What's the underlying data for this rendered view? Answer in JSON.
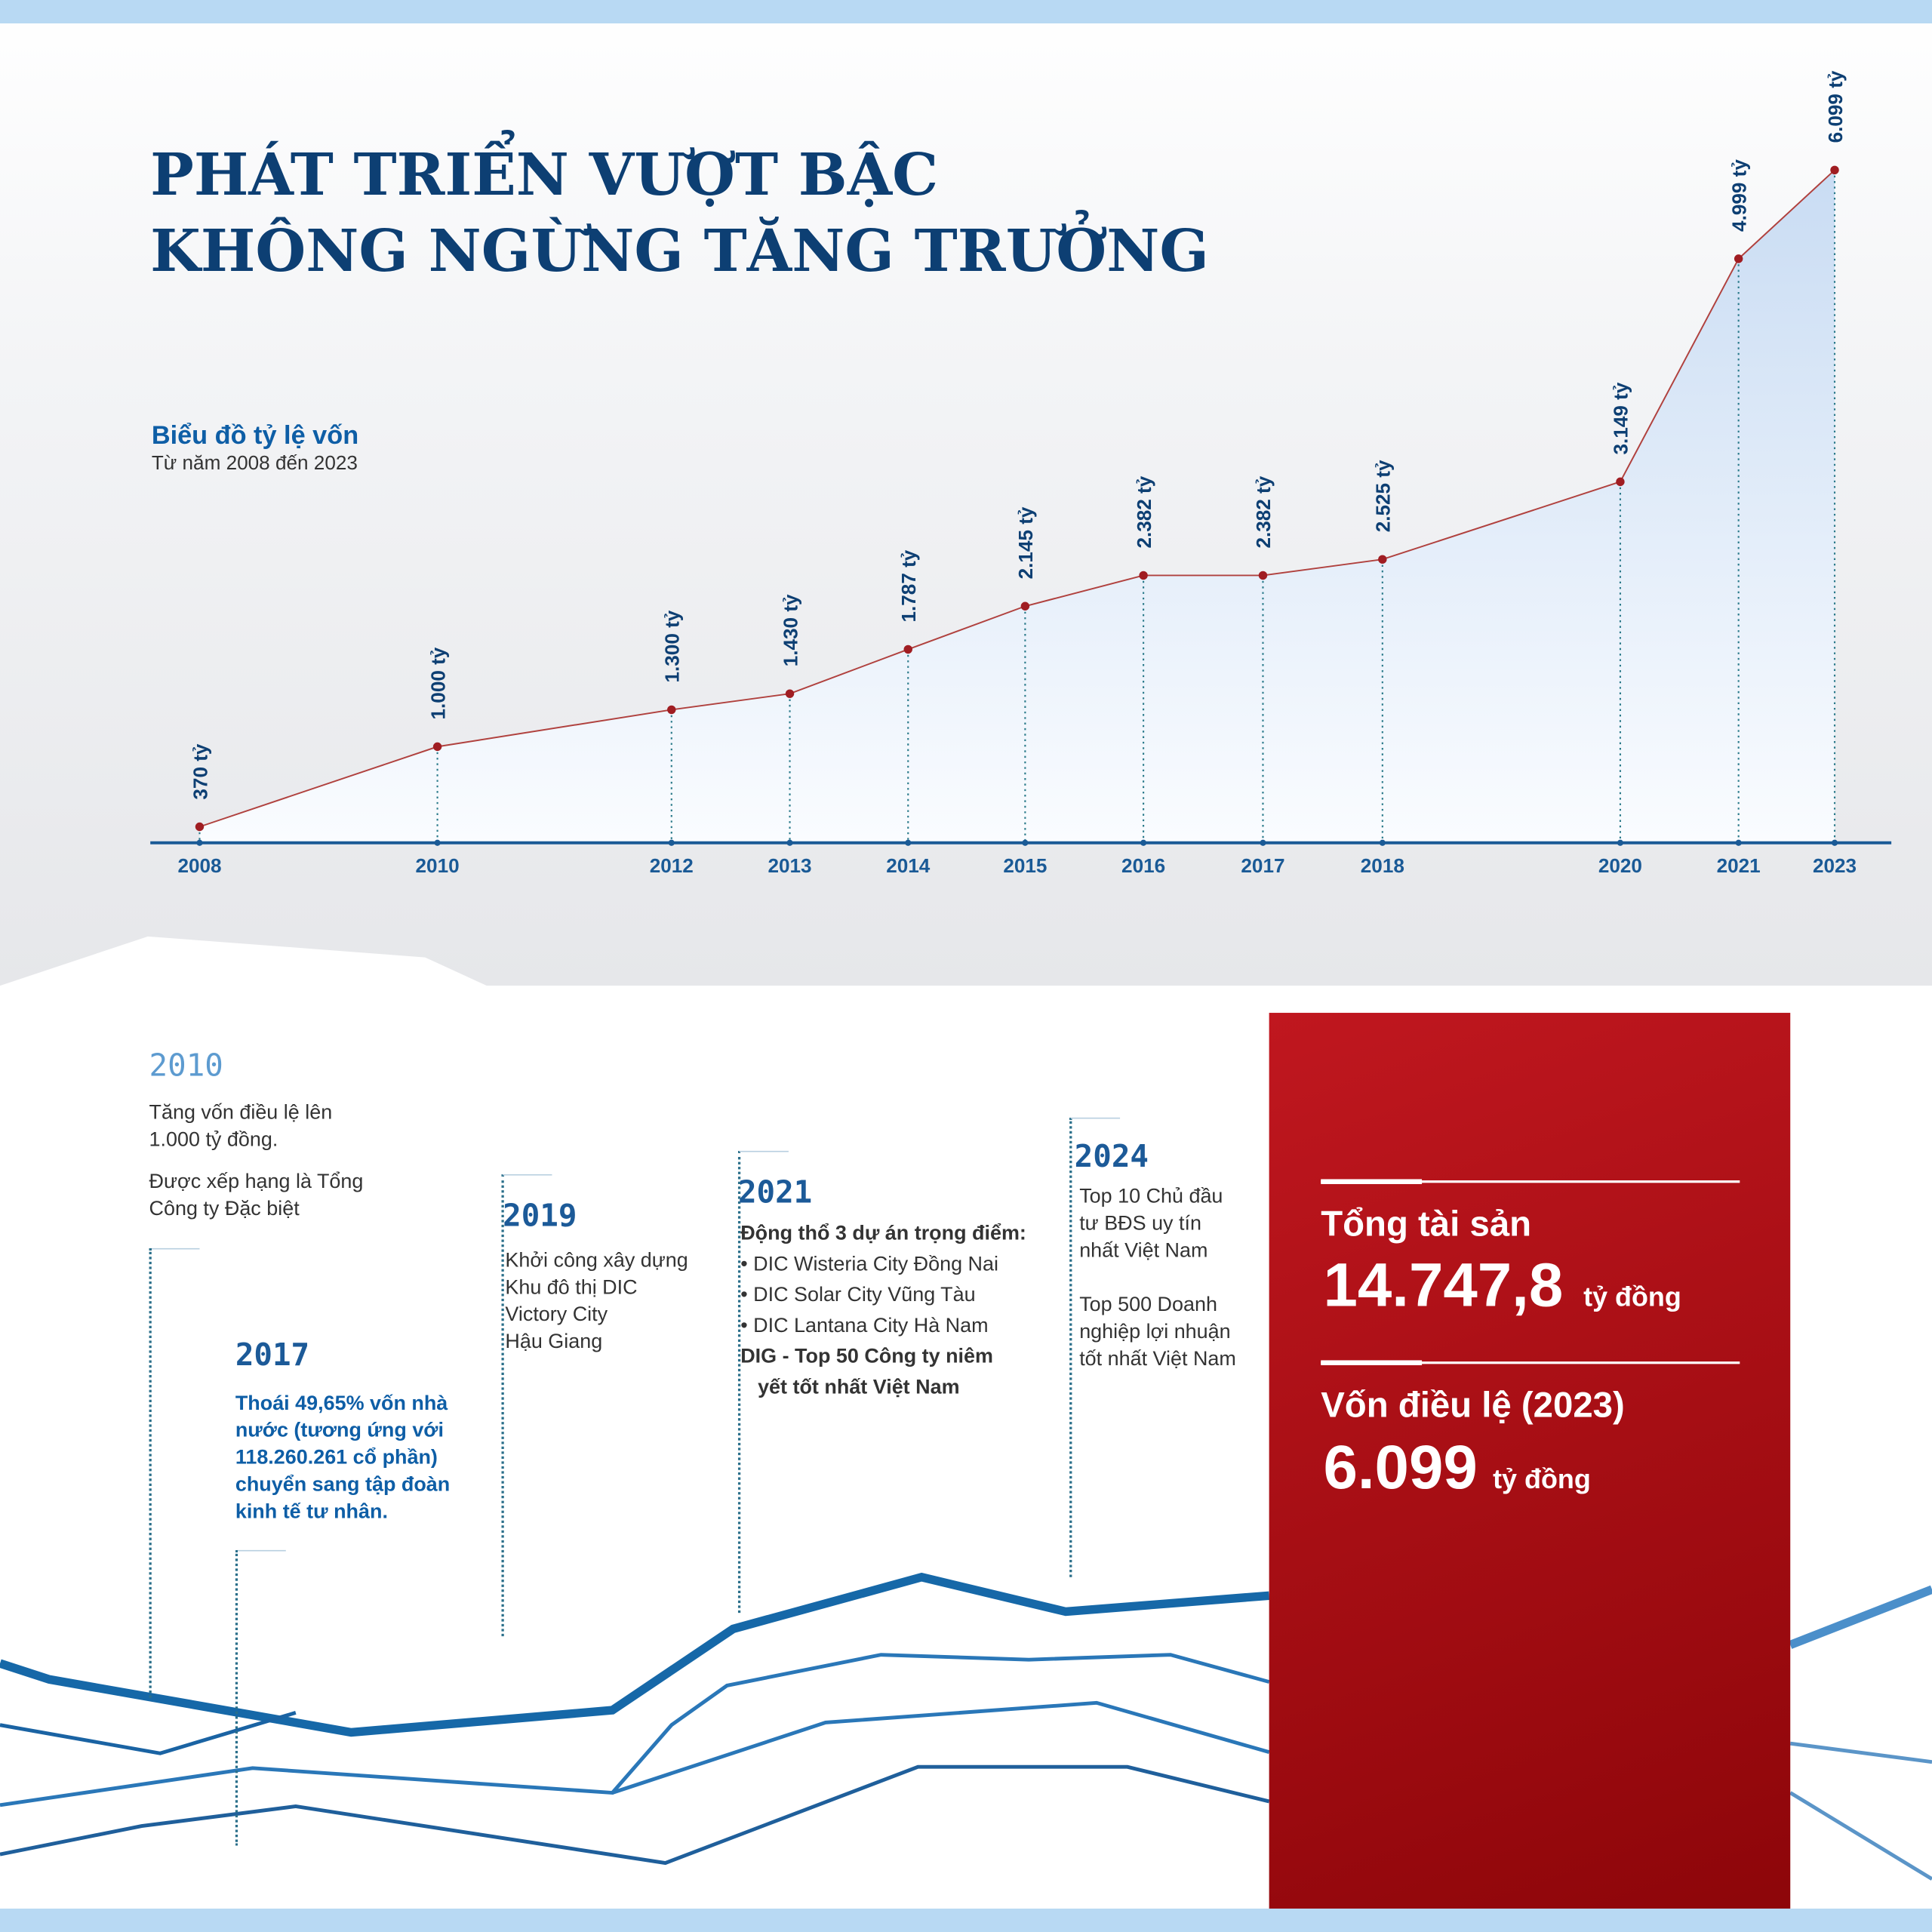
{
  "title": {
    "line1": "PHÁT TRIỂN VƯỢT BẬC",
    "line2": "KHÔNG NGỪNG TĂNG TRƯỞNG"
  },
  "chart_data": {
    "type": "area",
    "title": "Biểu đồ tỷ lệ vốn",
    "subtitle": "Từ năm 2008 đến 2023",
    "categories": [
      "2008",
      "2010",
      "2012",
      "2013",
      "2014",
      "2015",
      "2016",
      "2017",
      "2018",
      "2020",
      "2021",
      "2023"
    ],
    "values": [
      370,
      1000,
      1300,
      1430,
      1787,
      2145,
      2382,
      2382,
      2525,
      3149,
      4999,
      6099
    ],
    "labels": [
      "370 tỷ",
      "1.000 tỷ",
      "1.300 tỷ",
      "1.430 tỷ",
      "1.787 tỷ",
      "2.145 tỷ",
      "2.382 tỷ",
      "2.382 tỷ",
      "2.525 tỷ",
      "3.149 tỷ",
      "4.999 tỷ",
      "6.099 tỷ"
    ],
    "unit": "tỷ",
    "grid": false,
    "colors": {
      "line": "#b0413e",
      "point": "#a01d22",
      "fill": "#c9dcf3",
      "axis": "#1a5a96",
      "label": "#0d3f73"
    }
  },
  "timeline": [
    {
      "year": "2010",
      "lines": [
        "Tăng vốn điều lệ lên",
        "1.000 tỷ đồng."
      ],
      "lines2": [
        "Được xếp hạng là Tổng",
        "Công ty Đặc biệt"
      ]
    },
    {
      "year": "2017",
      "lines": [
        "Thoái 49,65% vốn nhà",
        "nước (tương ứng với",
        "118.260.261 cổ phần)",
        "chuyển sang tập đoàn",
        "kinh tế tư nhân."
      ]
    },
    {
      "year": "2019",
      "lines": [
        "Khởi công xây dựng",
        "Khu đô thị DIC",
        "Victory City",
        "Hậu Giang"
      ]
    },
    {
      "year": "2021",
      "heading": "Động thổ 3 dự án trọng điểm:",
      "lines": [
        "• DIC Wisteria City Đồng Nai",
        "• DIC Solar City Vũng Tàu",
        "• DIC Lantana City Hà Nam"
      ],
      "footer": [
        "DIG - Top 50 Công ty niêm",
        "yết tốt nhất Việt Nam"
      ]
    },
    {
      "year": "2024",
      "lines": [
        "Top 10 Chủ đầu",
        "tư BĐS uy tín",
        "nhất Việt Nam"
      ],
      "lines2": [
        "Top 500 Doanh",
        "nghiệp lợi nhuận",
        "tốt nhất Việt Nam"
      ]
    }
  ],
  "stats": {
    "assets_label": "Tổng tài sản",
    "assets_value": "14.747,8",
    "assets_unit": "tỷ đồng",
    "capital_label": "Vốn điều lệ (2023)",
    "capital_value": "6.099",
    "capital_unit": "tỷ đồng"
  }
}
